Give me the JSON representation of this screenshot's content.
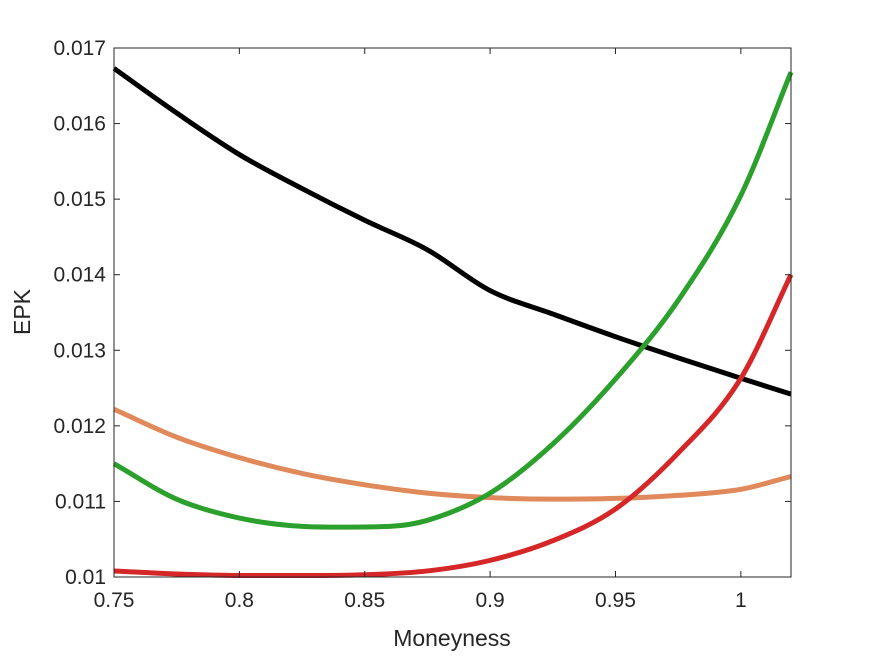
{
  "chart_data": {
    "type": "line",
    "title": "",
    "xlabel": "Moneyness",
    "ylabel": "EPK",
    "xlim": [
      0.75,
      1.02
    ],
    "ylim": [
      0.01,
      0.017
    ],
    "xticks": [
      0.75,
      0.8,
      0.85,
      0.9,
      0.95,
      1
    ],
    "xtick_labels": [
      "0.75",
      "0.8",
      "0.85",
      "0.9",
      "0.95",
      "1"
    ],
    "yticks": [
      0.01,
      0.011,
      0.012,
      0.013,
      0.014,
      0.015,
      0.016,
      0.017
    ],
    "ytick_labels": [
      "0.01",
      "0.011",
      "0.012",
      "0.013",
      "0.014",
      "0.015",
      "0.016",
      "0.017"
    ],
    "grid": false,
    "series": [
      {
        "color": "#000000",
        "x": [
          0.75,
          0.775,
          0.8,
          0.825,
          0.85,
          0.875,
          0.9,
          0.925,
          0.95,
          0.975,
          1.0,
          1.02
        ],
        "y": [
          0.01673,
          0.01614,
          0.01559,
          0.01514,
          0.01472,
          0.01433,
          0.01379,
          0.01348,
          0.01318,
          0.0129,
          0.01263,
          0.01242
        ]
      },
      {
        "color": "#E0895B",
        "x": [
          0.75,
          0.775,
          0.8,
          0.825,
          0.85,
          0.875,
          0.9,
          0.925,
          0.95,
          0.975,
          1.0,
          1.02
        ],
        "y": [
          0.01222,
          0.01185,
          0.01158,
          0.01137,
          0.01122,
          0.01111,
          0.01105,
          0.01103,
          0.01104,
          0.01108,
          0.01116,
          0.01133
        ]
      },
      {
        "color": "#2CA02C",
        "x": [
          0.75,
          0.775,
          0.8,
          0.825,
          0.84,
          0.86,
          0.875,
          0.9,
          0.925,
          0.95,
          0.975,
          1.0,
          1.02
        ],
        "y": [
          0.0115,
          0.01103,
          0.01078,
          0.01067,
          0.01066,
          0.01067,
          0.01075,
          0.01111,
          0.01176,
          0.01262,
          0.01366,
          0.01505,
          0.01668
        ]
      },
      {
        "color": "#D62728",
        "x": [
          0.75,
          0.775,
          0.8,
          0.825,
          0.85,
          0.875,
          0.9,
          0.925,
          0.95,
          0.975,
          1.0,
          1.02
        ],
        "y": [
          0.01008,
          0.01004,
          0.01002,
          0.01002,
          0.01003,
          0.01008,
          0.01022,
          0.01048,
          0.0109,
          0.01164,
          0.01263,
          0.014
        ]
      }
    ]
  }
}
